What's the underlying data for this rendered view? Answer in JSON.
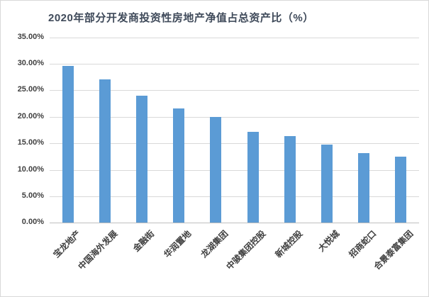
{
  "frame": {
    "background": "#ffffff",
    "border_color": "#d9d9d9"
  },
  "chart_data": {
    "type": "bar",
    "title": "2020年部分开发商投资性房地产净值占总资产比（%）",
    "categories": [
      "宝龙地产",
      "中国海外发展",
      "金融街",
      "华润置地",
      "龙湖集团",
      "中骏集团控股",
      "新城控股",
      "大悦城",
      "招商蛇口",
      "合景泰富集团"
    ],
    "values": [
      29.6,
      27.0,
      24.0,
      21.5,
      20.0,
      17.1,
      16.4,
      14.7,
      13.2,
      12.5
    ],
    "unit": "%",
    "ylabel": "",
    "xlabel": "",
    "ylim": [
      0,
      35
    ],
    "ytick_step": 5,
    "ytick_labels": [
      "0.00%",
      "5.00%",
      "10.00%",
      "15.00%",
      "20.00%",
      "25.00%",
      "30.00%",
      "35.00%"
    ],
    "grid": true,
    "legend": "none",
    "data_labels": "none",
    "colors": {
      "bar": "#5B9BD5",
      "gridline": "#D9D9D9",
      "axis_line": "#BFBFBF",
      "tick_label": "#404040",
      "title": "#3F4A5A"
    }
  }
}
